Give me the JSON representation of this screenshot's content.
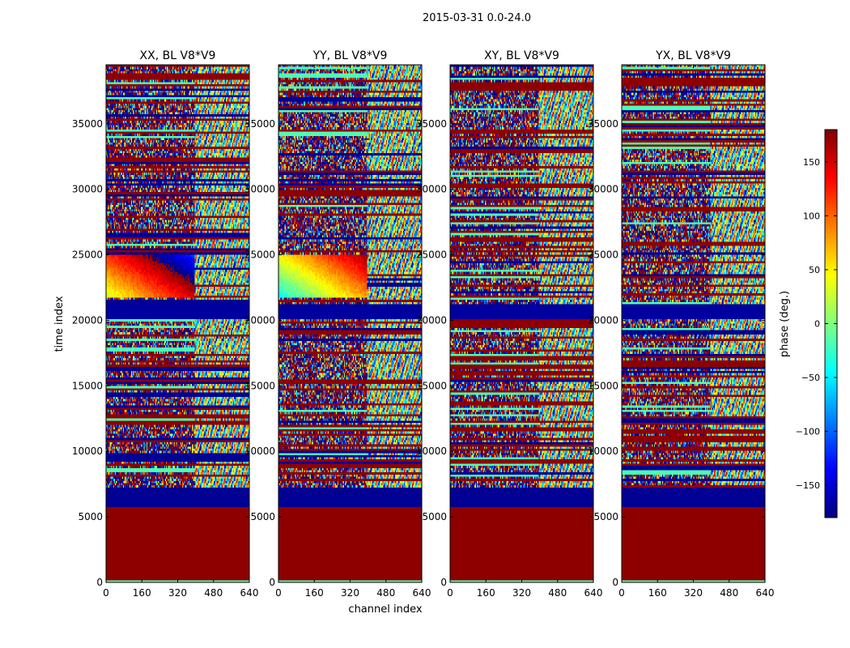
{
  "figure_title": "2015-03-31 0.0-24.0",
  "chart_data": {
    "type": "heatmap",
    "suptitle": "2015-03-31 0.0-24.0",
    "xlabel": "channel index",
    "ylabel": "time index",
    "xlim": [
      0,
      640
    ],
    "ylim": [
      0,
      39500
    ],
    "xticks": [
      0,
      160,
      320,
      480,
      640
    ],
    "yticks": [
      0,
      5000,
      10000,
      15000,
      20000,
      25000,
      30000,
      35000
    ],
    "colorbar": {
      "label": "phase (deg.)",
      "range": [
        -180,
        180
      ],
      "ticks": [
        -150,
        -100,
        -50,
        0,
        50,
        100,
        150
      ],
      "colormap": "jet",
      "stops": [
        "#00007f",
        "#0000ff",
        "#007fff",
        "#00ffff",
        "#7fff7f",
        "#ffff00",
        "#ff7f00",
        "#ff0000",
        "#7f0000"
      ]
    },
    "panels": [
      {
        "title": "XX, BL V8*V9"
      },
      {
        "title": "YY, BL V8*V9"
      },
      {
        "title": "XY, BL V8*V9"
      },
      {
        "title": "YX, BL V8*V9"
      }
    ]
  }
}
